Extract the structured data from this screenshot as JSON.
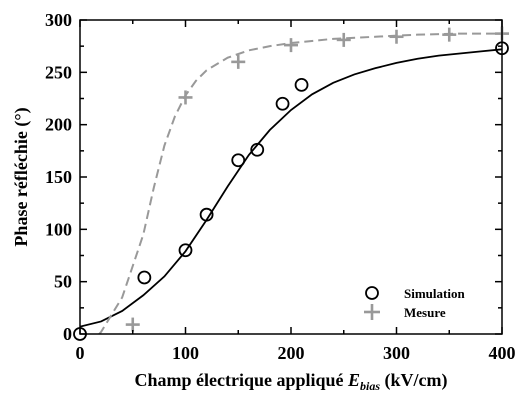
{
  "chart_data": {
    "type": "scatter",
    "xlabel": {
      "prefix": "Champ électrique appliqué ",
      "var": "E",
      "sub": "bias",
      "suffix": " (kV/cm)"
    },
    "ylabel": "Phase réfléchie (°)",
    "xlim": [
      0,
      400
    ],
    "ylim": [
      0,
      300
    ],
    "xticks": [
      0,
      100,
      200,
      300,
      400
    ],
    "yticks": [
      0,
      50,
      100,
      150,
      200,
      250,
      300
    ],
    "grid": false,
    "legend": {
      "placement": "bottom-right",
      "entries": [
        {
          "label": "Simulation",
          "marker": "circle",
          "color": "#000000"
        },
        {
          "label": "Mesure",
          "marker": "plus",
          "color": "#999999"
        }
      ]
    },
    "series": [
      {
        "name": "Simulation",
        "marker": "circle",
        "color": "#000000",
        "points": [
          [
            0,
            0
          ],
          [
            61,
            54
          ],
          [
            100,
            80
          ],
          [
            120,
            114
          ],
          [
            150,
            166
          ],
          [
            168,
            176
          ],
          [
            192,
            220
          ],
          [
            210,
            238
          ],
          [
            400,
            273
          ]
        ],
        "fit": [
          [
            0,
            7
          ],
          [
            20,
            12
          ],
          [
            40,
            22
          ],
          [
            60,
            37
          ],
          [
            80,
            55
          ],
          [
            100,
            79
          ],
          [
            120,
            109
          ],
          [
            140,
            141
          ],
          [
            160,
            171
          ],
          [
            180,
            195
          ],
          [
            200,
            214
          ],
          [
            220,
            229
          ],
          [
            240,
            240
          ],
          [
            260,
            248
          ],
          [
            280,
            254
          ],
          [
            300,
            259
          ],
          [
            320,
            263
          ],
          [
            340,
            266
          ],
          [
            360,
            268
          ],
          [
            380,
            270
          ],
          [
            400,
            272
          ]
        ]
      },
      {
        "name": "Mesure",
        "marker": "plus",
        "color": "#999999",
        "points": [
          [
            50,
            9
          ],
          [
            100,
            226
          ],
          [
            150,
            260
          ],
          [
            200,
            276
          ],
          [
            250,
            281
          ],
          [
            300,
            284
          ],
          [
            350,
            286
          ],
          [
            400,
            287
          ]
        ],
        "fit": [
          [
            0,
            -20
          ],
          [
            20,
            2
          ],
          [
            40,
            35
          ],
          [
            60,
            95
          ],
          [
            70,
            140
          ],
          [
            80,
            180
          ],
          [
            90,
            208
          ],
          [
            100,
            228
          ],
          [
            110,
            242
          ],
          [
            120,
            252
          ],
          [
            140,
            264
          ],
          [
            160,
            271
          ],
          [
            180,
            275
          ],
          [
            200,
            278
          ],
          [
            240,
            282
          ],
          [
            280,
            284
          ],
          [
            320,
            286
          ],
          [
            360,
            287
          ],
          [
            400,
            287
          ]
        ]
      }
    ]
  }
}
